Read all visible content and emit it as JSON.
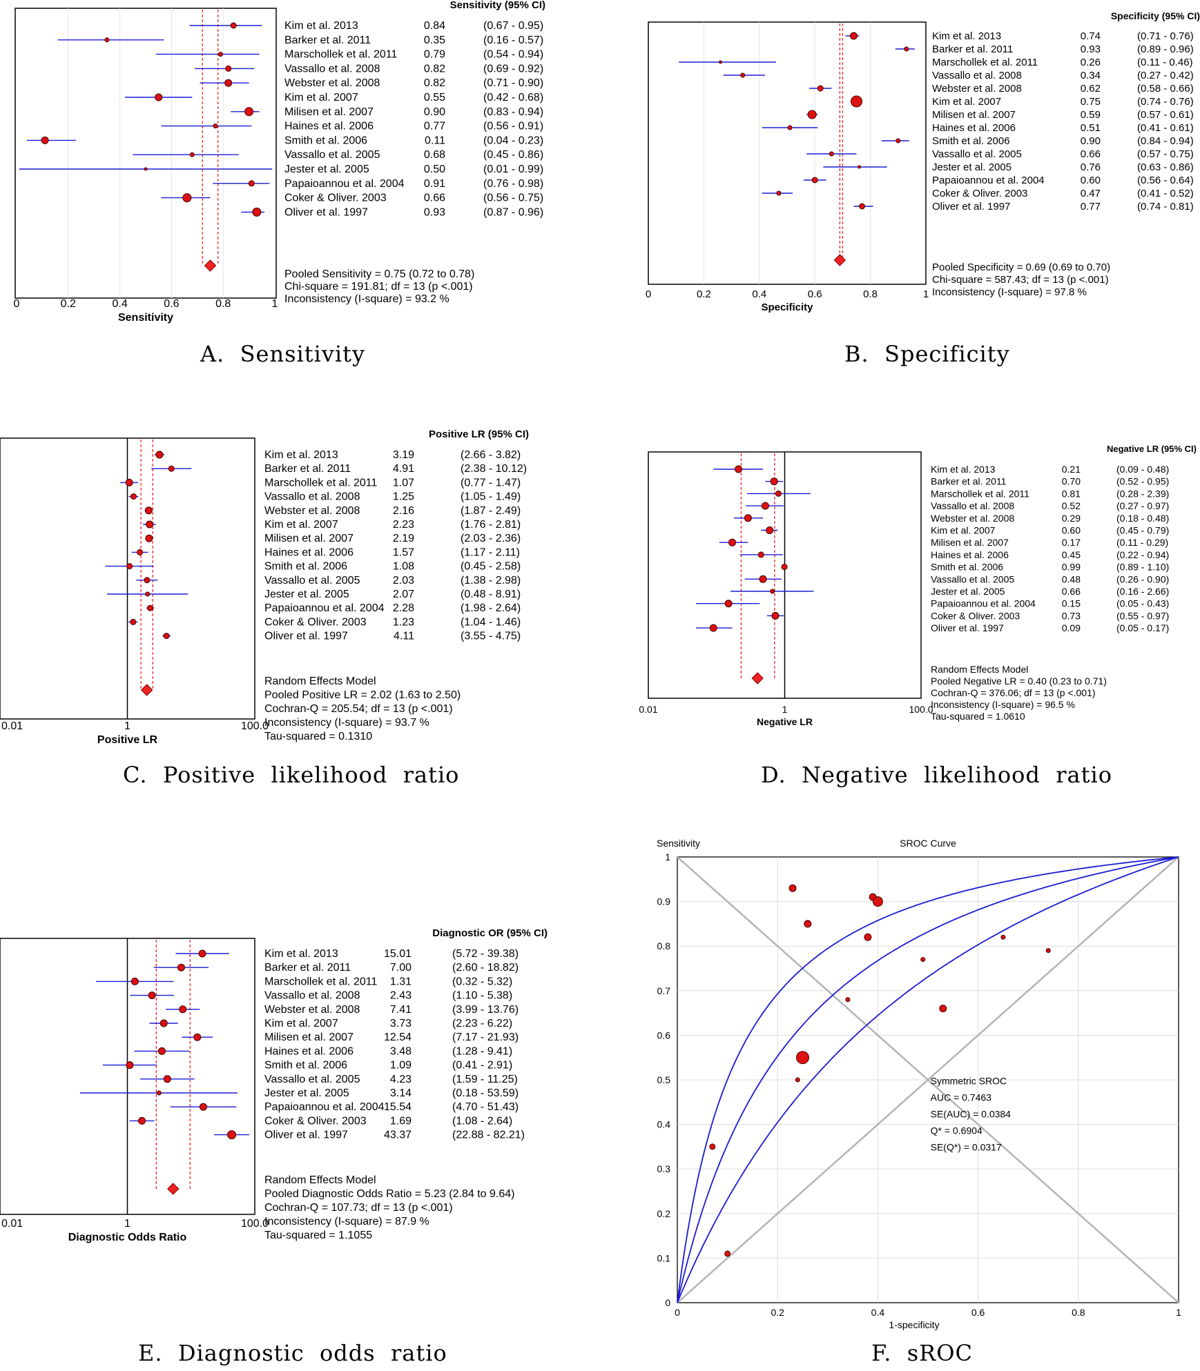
{
  "colors": {
    "marker": "#dd1111",
    "ci": "#1a1ad6",
    "pool": "#ee2222",
    "frame": "#000000",
    "grid": "#c8c8c8",
    "diag": "#b4b4b4"
  },
  "studies": [
    "Kim et al. 2013",
    "Barker et al. 2011",
    "Marschollek et al. 2011",
    "Vassallo et al. 2008",
    "Webster et al. 2008",
    "Kim et al. 2007",
    "Milisen et al. 2007",
    "Haines et al. 2006",
    "Smith et al. 2006",
    "Vassallo et al. 2005",
    "Jester et al. 2005",
    "Papaioannou et al. 2004",
    "Coker & Oliver. 2003",
    "Oliver et al. 1997"
  ],
  "captions": {
    "A": "A.  Sensitivity",
    "B": "B.  Specificity",
    "C": "C.  Positive  likelihood  ratio",
    "D": "D.  Negative  likelihood  ratio",
    "E": "E.  Diagnostic  odds  ratio",
    "F": "F.  sROC"
  },
  "chart_data": [
    {
      "type": "forest",
      "id": "A",
      "scale": "linear",
      "xlim": [
        0,
        1
      ],
      "xticks": [
        "0",
        "0.2",
        "0.4",
        "0.6",
        "0.8",
        "1"
      ],
      "xlabel": "Sensitivity",
      "header": "Sensitivity (95% CI)",
      "ref_value": 0.75,
      "ref_ci": [
        0.72,
        0.78
      ],
      "points": [
        0.84,
        0.35,
        0.79,
        0.82,
        0.82,
        0.55,
        0.9,
        0.77,
        0.11,
        0.68,
        0.5,
        0.91,
        0.66,
        0.93
      ],
      "ci": [
        [
          0.67,
          0.95
        ],
        [
          0.16,
          0.57
        ],
        [
          0.54,
          0.94
        ],
        [
          0.69,
          0.92
        ],
        [
          0.71,
          0.9
        ],
        [
          0.42,
          0.68
        ],
        [
          0.83,
          0.94
        ],
        [
          0.56,
          0.91
        ],
        [
          0.04,
          0.23
        ],
        [
          0.45,
          0.86
        ],
        [
          0.01,
          0.99
        ],
        [
          0.76,
          0.98
        ],
        [
          0.56,
          0.75
        ],
        [
          0.87,
          0.96
        ]
      ],
      "sizes": [
        4,
        3,
        3,
        4,
        5,
        5,
        6,
        3,
        5,
        3,
        2,
        4,
        6,
        6
      ],
      "values_text": [
        "0.84",
        "0.35",
        "0.79",
        "0.82",
        "0.82",
        "0.55",
        "0.90",
        "0.77",
        "0.11",
        "0.68",
        "0.50",
        "0.91",
        "0.66",
        "0.93"
      ],
      "ci_text": [
        "(0.67 - 0.95)",
        "(0.16 - 0.57)",
        "(0.54 - 0.94)",
        "(0.69 - 0.92)",
        "(0.71 - 0.90)",
        "(0.42 - 0.68)",
        "(0.83 - 0.94)",
        "(0.56 - 0.91)",
        "(0.04 - 0.23)",
        "(0.45 - 0.86)",
        "(0.01 - 0.99)",
        "(0.76 - 0.98)",
        "(0.56 - 0.75)",
        "(0.87 - 0.96)"
      ],
      "footer": [
        "Pooled Sensitivity = 0.75 (0.72 to 0.78)",
        "Chi-square = 191.81; df = 13 (p <.001)",
        "Inconsistency (I-square) = 93.2 %"
      ]
    },
    {
      "type": "forest",
      "id": "B",
      "scale": "linear",
      "xlim": [
        0,
        1
      ],
      "xticks": [
        "0",
        "0.2",
        "0.4",
        "0.6",
        "0.8",
        "1"
      ],
      "xlabel": "Specificity",
      "header": "Specificity (95% CI)",
      "ref_value": 0.69,
      "ref_ci": [
        0.69,
        0.7
      ],
      "points": [
        0.74,
        0.93,
        0.26,
        0.34,
        0.62,
        0.75,
        0.59,
        0.51,
        0.9,
        0.66,
        0.76,
        0.6,
        0.47,
        0.77
      ],
      "ci": [
        [
          0.71,
          0.76
        ],
        [
          0.89,
          0.96
        ],
        [
          0.11,
          0.46
        ],
        [
          0.27,
          0.42
        ],
        [
          0.58,
          0.66
        ],
        [
          0.74,
          0.76
        ],
        [
          0.57,
          0.61
        ],
        [
          0.41,
          0.61
        ],
        [
          0.84,
          0.94
        ],
        [
          0.57,
          0.75
        ],
        [
          0.63,
          0.86
        ],
        [
          0.56,
          0.64
        ],
        [
          0.41,
          0.52
        ],
        [
          0.74,
          0.81
        ]
      ],
      "sizes": [
        5,
        3,
        2,
        3,
        4,
        8,
        6,
        3,
        3,
        3,
        2,
        4,
        3,
        4
      ],
      "values_text": [
        "0.74",
        "0.93",
        "0.26",
        "0.34",
        "0.62",
        "0.75",
        "0.59",
        "0.51",
        "0.90",
        "0.66",
        "0.76",
        "0.60",
        "0.47",
        "0.77"
      ],
      "ci_text": [
        "(0.71 - 0.76)",
        "(0.89 - 0.96)",
        "(0.11 - 0.46)",
        "(0.27 - 0.42)",
        "(0.58 - 0.66)",
        "(0.74 - 0.76)",
        "(0.57 - 0.61)",
        "(0.41 - 0.61)",
        "(0.84 - 0.94)",
        "(0.57 - 0.75)",
        "(0.63 - 0.86)",
        "(0.56 - 0.64)",
        "(0.41 - 0.52)",
        "(0.74 - 0.81)"
      ],
      "footer": [
        "Pooled Specificity = 0.69 (0.69 to 0.70)",
        "Chi-square = 587.43; df = 13 (p <.001)",
        "Inconsistency (I-square) = 97.8 %"
      ]
    },
    {
      "type": "forest",
      "id": "C",
      "scale": "log",
      "xlim": [
        0.01,
        100
      ],
      "xticks": [
        "0.01",
        "1",
        "100.0"
      ],
      "xlabel": "Positive LR",
      "header": "Positive LR (95% CI)",
      "ref_value": 2.02,
      "ref_ci": [
        1.63,
        2.5
      ],
      "points": [
        3.19,
        4.91,
        1.07,
        1.25,
        2.16,
        2.23,
        2.19,
        1.57,
        1.08,
        2.03,
        2.07,
        2.28,
        1.23,
        4.11
      ],
      "ci": [
        [
          2.66,
          3.82
        ],
        [
          2.38,
          10.12
        ],
        [
          0.77,
          1.47
        ],
        [
          1.05,
          1.49
        ],
        [
          1.87,
          2.49
        ],
        [
          1.76,
          2.81
        ],
        [
          2.03,
          2.36
        ],
        [
          1.17,
          2.11
        ],
        [
          0.45,
          2.58
        ],
        [
          1.38,
          2.98
        ],
        [
          0.48,
          8.91
        ],
        [
          1.98,
          2.64
        ],
        [
          1.04,
          1.46
        ],
        [
          3.55,
          4.75
        ]
      ],
      "sizes": [
        5,
        4,
        5,
        4,
        5,
        5,
        5,
        4,
        4,
        4,
        3,
        4,
        4,
        4
      ],
      "values_text": [
        "3.19",
        "4.91",
        "1.07",
        "1.25",
        "2.16",
        "2.23",
        "2.19",
        "1.57",
        "1.08",
        "2.03",
        "2.07",
        "2.28",
        "1.23",
        "4.11"
      ],
      "ci_text": [
        "(2.66 - 3.82)",
        "(2.38 - 10.12)",
        "(0.77 - 1.47)",
        "(1.05 - 1.49)",
        "(1.87 - 2.49)",
        "(1.76 - 2.81)",
        "(2.03 - 2.36)",
        "(1.17 - 2.11)",
        "(0.45 - 2.58)",
        "(1.38 - 2.98)",
        "(0.48 - 8.91)",
        "(1.98 - 2.64)",
        "(1.04 - 1.46)",
        "(3.55 - 4.75)"
      ],
      "footer": [
        "Random Effects Model",
        "Pooled Positive LR = 2.02 (1.63 to 2.50)",
        "Cochran-Q = 205.54; df = 13 (p <.001)",
        "Inconsistency (I-square) = 93.7 %",
        "Tau-squared = 0.1310"
      ]
    },
    {
      "type": "forest",
      "id": "D",
      "scale": "log",
      "xlim": [
        0.01,
        100
      ],
      "xticks": [
        "0.01",
        "1",
        "100.0"
      ],
      "xlabel": "Negative LR",
      "header": "Negative LR (95% CI)",
      "ref_value": 0.4,
      "ref_ci": [
        0.23,
        0.71
      ],
      "points": [
        0.21,
        0.7,
        0.81,
        0.52,
        0.29,
        0.6,
        0.17,
        0.45,
        0.99,
        0.48,
        0.66,
        0.15,
        0.73,
        0.09
      ],
      "ci": [
        [
          0.09,
          0.48
        ],
        [
          0.52,
          0.95
        ],
        [
          0.28,
          2.39
        ],
        [
          0.27,
          0.97
        ],
        [
          0.18,
          0.48
        ],
        [
          0.45,
          0.79
        ],
        [
          0.11,
          0.29
        ],
        [
          0.22,
          0.94
        ],
        [
          0.89,
          1.1
        ],
        [
          0.26,
          0.9
        ],
        [
          0.16,
          2.66
        ],
        [
          0.05,
          0.43
        ],
        [
          0.55,
          0.97
        ],
        [
          0.05,
          0.17
        ]
      ],
      "sizes": [
        5,
        5,
        4,
        5,
        5,
        5,
        5,
        4,
        4,
        5,
        3,
        5,
        5,
        5
      ],
      "values_text": [
        "0.21",
        "0.70",
        "0.81",
        "0.52",
        "0.29",
        "0.60",
        "0.17",
        "0.45",
        "0.99",
        "0.48",
        "0.66",
        "0.15",
        "0.73",
        "0.09"
      ],
      "ci_text": [
        "(0.09 - 0.48)",
        "(0.52 - 0.95)",
        "(0.28 - 2.39)",
        "(0.27 - 0.97)",
        "(0.18 - 0.48)",
        "(0.45 - 0.79)",
        "(0.11 - 0.29)",
        "(0.22 - 0.94)",
        "(0.89 - 1.10)",
        "(0.26 - 0.90)",
        "(0.16 - 2.66)",
        "(0.05 - 0.43)",
        "(0.55 - 0.97)",
        "(0.05 - 0.17)"
      ],
      "footer": [
        "Random Effects Model",
        "Pooled Negative LR = 0.40 (0.23 to 0.71)",
        "Cochran-Q = 376.06; df = 13 (p <.001)",
        "Inconsistency (I-square) = 96.5 %",
        "Tau-squared = 1.0610"
      ]
    },
    {
      "type": "forest",
      "id": "E",
      "scale": "log",
      "xlim": [
        0.01,
        100
      ],
      "xticks": [
        "0.01",
        "1",
        "100.0"
      ],
      "xlabel": "Diagnostic Odds Ratio",
      "header": "Diagnostic OR (95% CI)",
      "ref_value": 5.23,
      "ref_ci": [
        2.84,
        9.64
      ],
      "points": [
        15.01,
        7.0,
        1.31,
        2.43,
        7.41,
        3.73,
        12.54,
        3.48,
        1.09,
        4.23,
        3.14,
        15.54,
        1.69,
        43.37
      ],
      "ci": [
        [
          5.72,
          39.38
        ],
        [
          2.6,
          18.82
        ],
        [
          0.32,
          5.32
        ],
        [
          1.1,
          5.38
        ],
        [
          3.99,
          13.76
        ],
        [
          2.23,
          6.22
        ],
        [
          7.17,
          21.93
        ],
        [
          1.28,
          9.41
        ],
        [
          0.41,
          2.91
        ],
        [
          1.59,
          11.25
        ],
        [
          0.18,
          53.59
        ],
        [
          4.7,
          51.43
        ],
        [
          1.08,
          2.64
        ],
        [
          22.88,
          82.21
        ]
      ],
      "sizes": [
        5,
        5,
        5,
        5,
        5,
        5,
        5,
        5,
        5,
        5,
        3,
        5,
        5,
        6
      ],
      "values_text": [
        "15.01",
        "7.00",
        "1.31",
        "2.43",
        "7.41",
        "3.73",
        "12.54",
        "3.48",
        "1.09",
        "4.23",
        "3.14",
        "15.54",
        "1.69",
        "43.37"
      ],
      "ci_text": [
        "(5.72 - 39.38)",
        "(2.60 - 18.82)",
        "(0.32 - 5.32)",
        "(1.10 - 5.38)",
        "(3.99 - 13.76)",
        "(2.23 - 6.22)",
        "(7.17 - 21.93)",
        "(1.28 - 9.41)",
        "(0.41 - 2.91)",
        "(1.59 - 11.25)",
        "(0.18 - 53.59)",
        "(4.70 - 51.43)",
        "(1.08 - 2.64)",
        "(22.88 - 82.21)"
      ],
      "footer": [
        "Random Effects Model",
        "Pooled Diagnostic Odds Ratio = 5.23 (2.84 to 9.64)",
        "Cochran-Q = 107.73; df = 13 (p <.001)",
        "Inconsistency (I-square) = 87.9 %",
        "Tau-squared = 1.1055"
      ]
    },
    {
      "type": "sroc",
      "id": "F",
      "title": "SROC Curve",
      "xlabel": "1-specificity",
      "ylabel": "Sensitivity",
      "xlim": [
        0,
        1
      ],
      "ylim": [
        0,
        1
      ],
      "xticks": [
        "0",
        "0.2",
        "0.4",
        "0.6",
        "0.8",
        "1"
      ],
      "yticks": [
        "0",
        "0.1",
        "0.2",
        "0.3",
        "0.4",
        "0.5",
        "0.6",
        "0.7",
        "0.8",
        "0.9",
        "1"
      ],
      "auc": 0.7463,
      "se_auc": 0.0384,
      "stats": [
        "Symmetric SROC",
        "AUC = 0.7463",
        "SE(AUC) = 0.0384",
        "Q* = 0.6904",
        "SE(Q*) = 0.0317"
      ],
      "points": [
        {
          "x": 0.23,
          "y": 0.93,
          "r": 5
        },
        {
          "x": 0.26,
          "y": 0.85,
          "r": 5
        },
        {
          "x": 0.39,
          "y": 0.91,
          "r": 5
        },
        {
          "x": 0.4,
          "y": 0.9,
          "r": 7
        },
        {
          "x": 0.38,
          "y": 0.82,
          "r": 5
        },
        {
          "x": 0.49,
          "y": 0.77,
          "r": 3
        },
        {
          "x": 0.65,
          "y": 0.82,
          "r": 3
        },
        {
          "x": 0.74,
          "y": 0.79,
          "r": 3
        },
        {
          "x": 0.34,
          "y": 0.68,
          "r": 3
        },
        {
          "x": 0.53,
          "y": 0.66,
          "r": 5
        },
        {
          "x": 0.25,
          "y": 0.55,
          "r": 9
        },
        {
          "x": 0.24,
          "y": 0.5,
          "r": 3
        },
        {
          "x": 0.07,
          "y": 0.35,
          "r": 4
        },
        {
          "x": 0.1,
          "y": 0.11,
          "r": 4
        }
      ]
    }
  ]
}
